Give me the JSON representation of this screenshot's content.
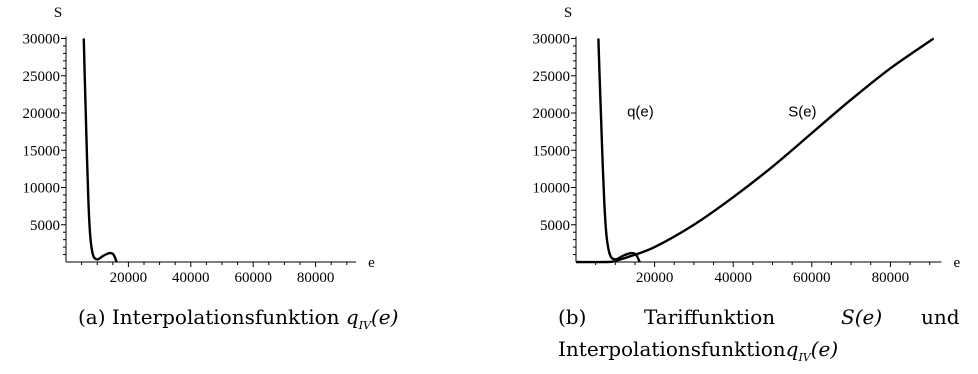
{
  "chart_data": [
    {
      "type": "line",
      "panel_label": "(a)",
      "caption_text": "Interpolationsfunktion",
      "caption_math": "q",
      "caption_sub": "IV",
      "caption_arg": "(e)",
      "xlabel": "e",
      "ylabel": "S",
      "xlim": [
        0,
        93000
      ],
      "ylim": [
        0,
        30000
      ],
      "x_ticks": [
        20000,
        40000,
        60000,
        80000
      ],
      "y_ticks": [
        5000,
        10000,
        15000,
        20000,
        25000,
        30000
      ],
      "grid": false,
      "series": [
        {
          "x": [
            5700,
            6000,
            6400,
            6800,
            7200,
            7600,
            8000,
            8500,
            9000,
            9600,
            10200,
            11000,
            12000,
            13000,
            14000,
            15000,
            15600,
            16200
          ],
          "y": [
            30000,
            25000,
            19000,
            13000,
            8000,
            4500,
            2500,
            1200,
            600,
            400,
            350,
            550,
            850,
            1050,
            1200,
            1100,
            700,
            0
          ]
        }
      ],
      "annotations": []
    },
    {
      "type": "line",
      "panel_label": "(b)",
      "caption_line1": [
        "Tariffunktion",
        "S(e)",
        "und"
      ],
      "caption_line2_text": "Interpolationsfunktion",
      "caption_math": "q",
      "caption_sub": "IV",
      "caption_arg": "(e)",
      "xlabel": "e",
      "ylabel": "S",
      "xlim": [
        0,
        93000
      ],
      "ylim": [
        0,
        30000
      ],
      "x_ticks": [
        20000,
        40000,
        60000,
        80000
      ],
      "y_ticks": [
        5000,
        10000,
        15000,
        20000,
        25000,
        30000
      ],
      "grid": false,
      "series": [
        {
          "name": "q(e)",
          "x": [
            5700,
            6000,
            6400,
            6800,
            7200,
            7600,
            8000,
            8500,
            9000,
            9600,
            10200,
            11000,
            12000,
            13000,
            14000,
            15000,
            15600,
            16200
          ],
          "y": [
            30000,
            25000,
            19000,
            13000,
            8000,
            4500,
            2500,
            1200,
            600,
            400,
            350,
            550,
            850,
            1050,
            1200,
            1100,
            700,
            0
          ]
        },
        {
          "name": "S(e)",
          "x": [
            0,
            8000,
            10000,
            14000,
            20000,
            30000,
            40000,
            50000,
            60000,
            70000,
            80000,
            91000
          ],
          "y": [
            0,
            0,
            150,
            800,
            2000,
            5000,
            8700,
            12800,
            17300,
            21800,
            26000,
            30000
          ]
        }
      ],
      "annotations": [
        {
          "text": "q(e)",
          "x": 13000,
          "y": 19500
        },
        {
          "text": "S(e)",
          "x": 54000,
          "y": 19500
        }
      ]
    }
  ]
}
